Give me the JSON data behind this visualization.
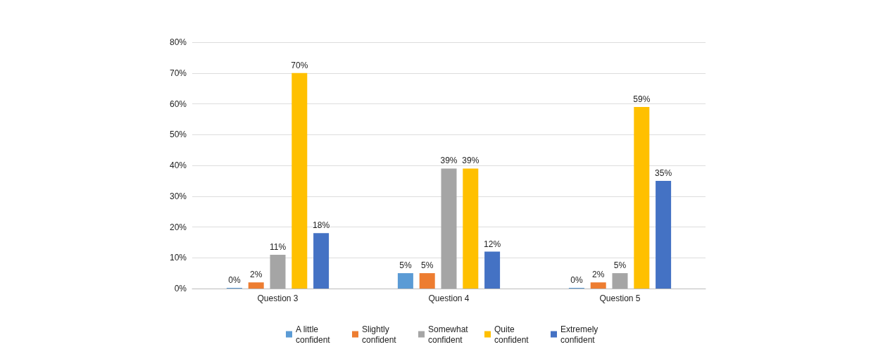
{
  "chart_data": {
    "type": "bar",
    "categories": [
      "Question 3",
      "Question 4",
      "Question 5"
    ],
    "series": [
      {
        "name": "A little confident",
        "color": "#5b9bd5",
        "values": [
          0,
          5,
          0
        ],
        "value_labels": [
          "0%",
          "5%",
          "0%"
        ]
      },
      {
        "name": "Slightly confident",
        "color": "#ed7d31",
        "values": [
          2,
          5,
          2
        ],
        "value_labels": [
          "2%",
          "5%",
          "2%"
        ]
      },
      {
        "name": "Somewhat confident",
        "color": "#a5a5a5",
        "values": [
          11,
          39,
          5
        ],
        "value_labels": [
          "11%",
          "39%",
          "5%"
        ]
      },
      {
        "name": "Quite confident",
        "color": "#ffc000",
        "values": [
          70,
          39,
          59
        ],
        "value_labels": [
          "70%",
          "39%",
          "59%"
        ]
      },
      {
        "name": "Extremely confident",
        "color": "#4472c4",
        "values": [
          18,
          12,
          35
        ],
        "value_labels": [
          "18%",
          "12%",
          "35%"
        ]
      }
    ],
    "ylim": [
      0,
      80
    ],
    "yticks": [
      {
        "value": 0,
        "label": "0%"
      },
      {
        "value": 10,
        "label": "10%"
      },
      {
        "value": 20,
        "label": "20%"
      },
      {
        "value": 30,
        "label": "30%"
      },
      {
        "value": 40,
        "label": "40%"
      },
      {
        "value": 50,
        "label": "50%"
      },
      {
        "value": 60,
        "label": "60%"
      },
      {
        "value": 70,
        "label": "70%"
      },
      {
        "value": 80,
        "label": "80%"
      }
    ],
    "grid": "y",
    "legend": "bottom"
  }
}
